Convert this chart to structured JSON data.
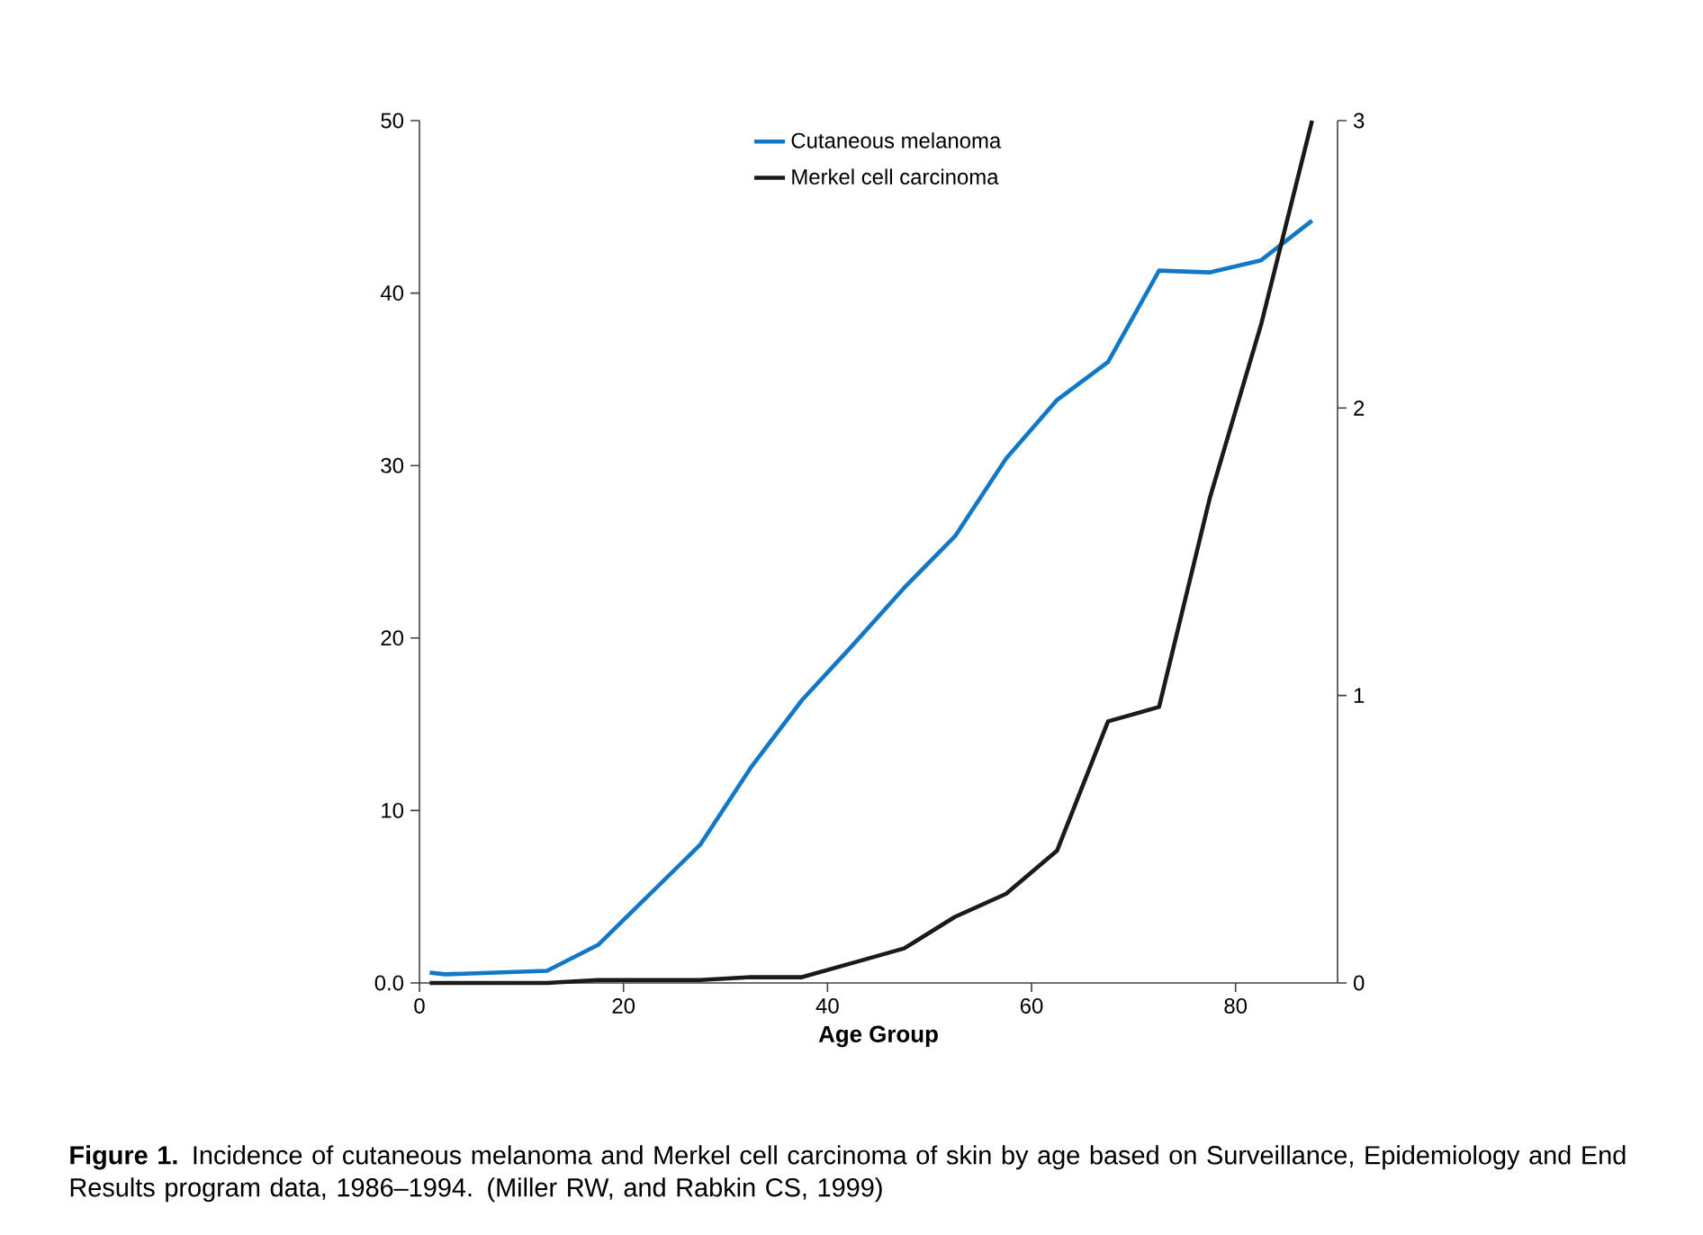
{
  "chart_data": {
    "type": "line",
    "xlabel": "Age Group",
    "xlim": [
      0,
      90
    ],
    "xticks": [
      0,
      20,
      40,
      60,
      80
    ],
    "ylim": [
      0,
      50
    ],
    "yticks": [
      {
        "value": 0,
        "label": "0.0"
      },
      10,
      20,
      30,
      40,
      50
    ],
    "y2lim": [
      0,
      3
    ],
    "y2ticks": [
      0,
      1,
      2,
      3
    ],
    "legend": "top",
    "grid": false,
    "line_style": "solid",
    "series": [
      {
        "name": "Cutaneous melanoma",
        "color": "#1177c7",
        "x": [
          1,
          2.5,
          12.5,
          17.5,
          22.5,
          27.5,
          32.5,
          37.5,
          42.5,
          47.5,
          52.5,
          57.5,
          62.5,
          67.5,
          72.5,
          77.5,
          82.5,
          87.5
        ],
        "values": [
          0.6,
          0.5,
          0.7,
          2.2,
          5.1,
          8.0,
          12.5,
          16.4,
          19.6,
          22.9,
          25.9,
          30.4,
          33.8,
          36.0,
          41.3,
          41.2,
          41.9,
          44.2
        ]
      },
      {
        "name": "Merkel cell carcinoma",
        "color": "#1a1a1a",
        "axis": "y2",
        "x": [
          1,
          2.5,
          12.5,
          17.5,
          22.5,
          27.5,
          32.5,
          37.5,
          42.5,
          47.5,
          52.5,
          57.5,
          62.5,
          67.5,
          72.5,
          77.5,
          82.5,
          87.5
        ],
        "values": [
          0,
          0,
          0,
          0.01,
          0.01,
          0.01,
          0.02,
          0.02,
          0.07,
          0.12,
          0.23,
          0.31,
          0.46,
          0.91,
          0.96,
          1.69,
          2.29,
          3.0
        ]
      }
    ],
    "annotations": [
      "**Figure 1.** Incidence of cutaneous melanoma and Merkel cell carcinoma of skin by age based on Surveillance, Epidemiology and End Results program data, 1986–1994. (Miller RW, and Rabkin CS, 1999)"
    ]
  }
}
